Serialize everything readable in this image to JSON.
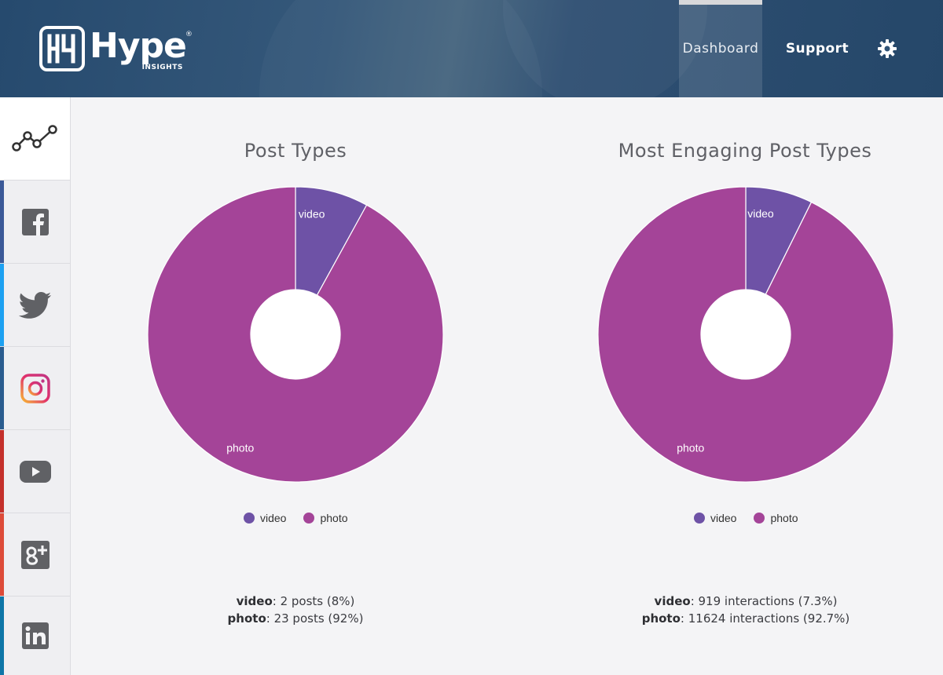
{
  "header": {
    "logo": {
      "name": "Hype",
      "sub": "INSIGHTS",
      "reg": "®"
    },
    "nav": {
      "dashboard": "Dashboard",
      "support": "Support",
      "settings_icon": "gear-icon"
    }
  },
  "sidebar": {
    "items": [
      {
        "icon": "analytics-icon",
        "active": true,
        "stripe": ""
      },
      {
        "icon": "facebook-icon",
        "stripe": "#3b5998"
      },
      {
        "icon": "twitter-icon",
        "stripe": "#1da1f2"
      },
      {
        "icon": "instagram-icon",
        "stripe": "#2a5c8f"
      },
      {
        "icon": "youtube-icon",
        "stripe": "#c4302b"
      },
      {
        "icon": "google-plus-icon",
        "stripe": "#dd4b39"
      },
      {
        "icon": "linkedin-icon",
        "stripe": "#0e76a8"
      }
    ]
  },
  "colors": {
    "video": "#6e52a6",
    "photo": "#a44498"
  },
  "chart_data": [
    {
      "type": "pie",
      "title": "Post Types",
      "categories": [
        "video",
        "photo"
      ],
      "values": [
        2,
        23
      ],
      "legend": [
        "video",
        "photo"
      ],
      "legend_placement": "bottom",
      "summary": [
        {
          "label": "video",
          "text": ": 2 posts (8%)"
        },
        {
          "label": "photo",
          "text": ": 23 posts (92%)"
        }
      ]
    },
    {
      "type": "pie",
      "title": "Most Engaging Post Types",
      "categories": [
        "video",
        "photo"
      ],
      "values": [
        919,
        11624
      ],
      "legend": [
        "video",
        "photo"
      ],
      "legend_placement": "bottom",
      "summary": [
        {
          "label": "video",
          "text": ": 919 interactions (7.3%)"
        },
        {
          "label": "photo",
          "text": ": 11624 interactions (92.7%)"
        }
      ]
    }
  ]
}
